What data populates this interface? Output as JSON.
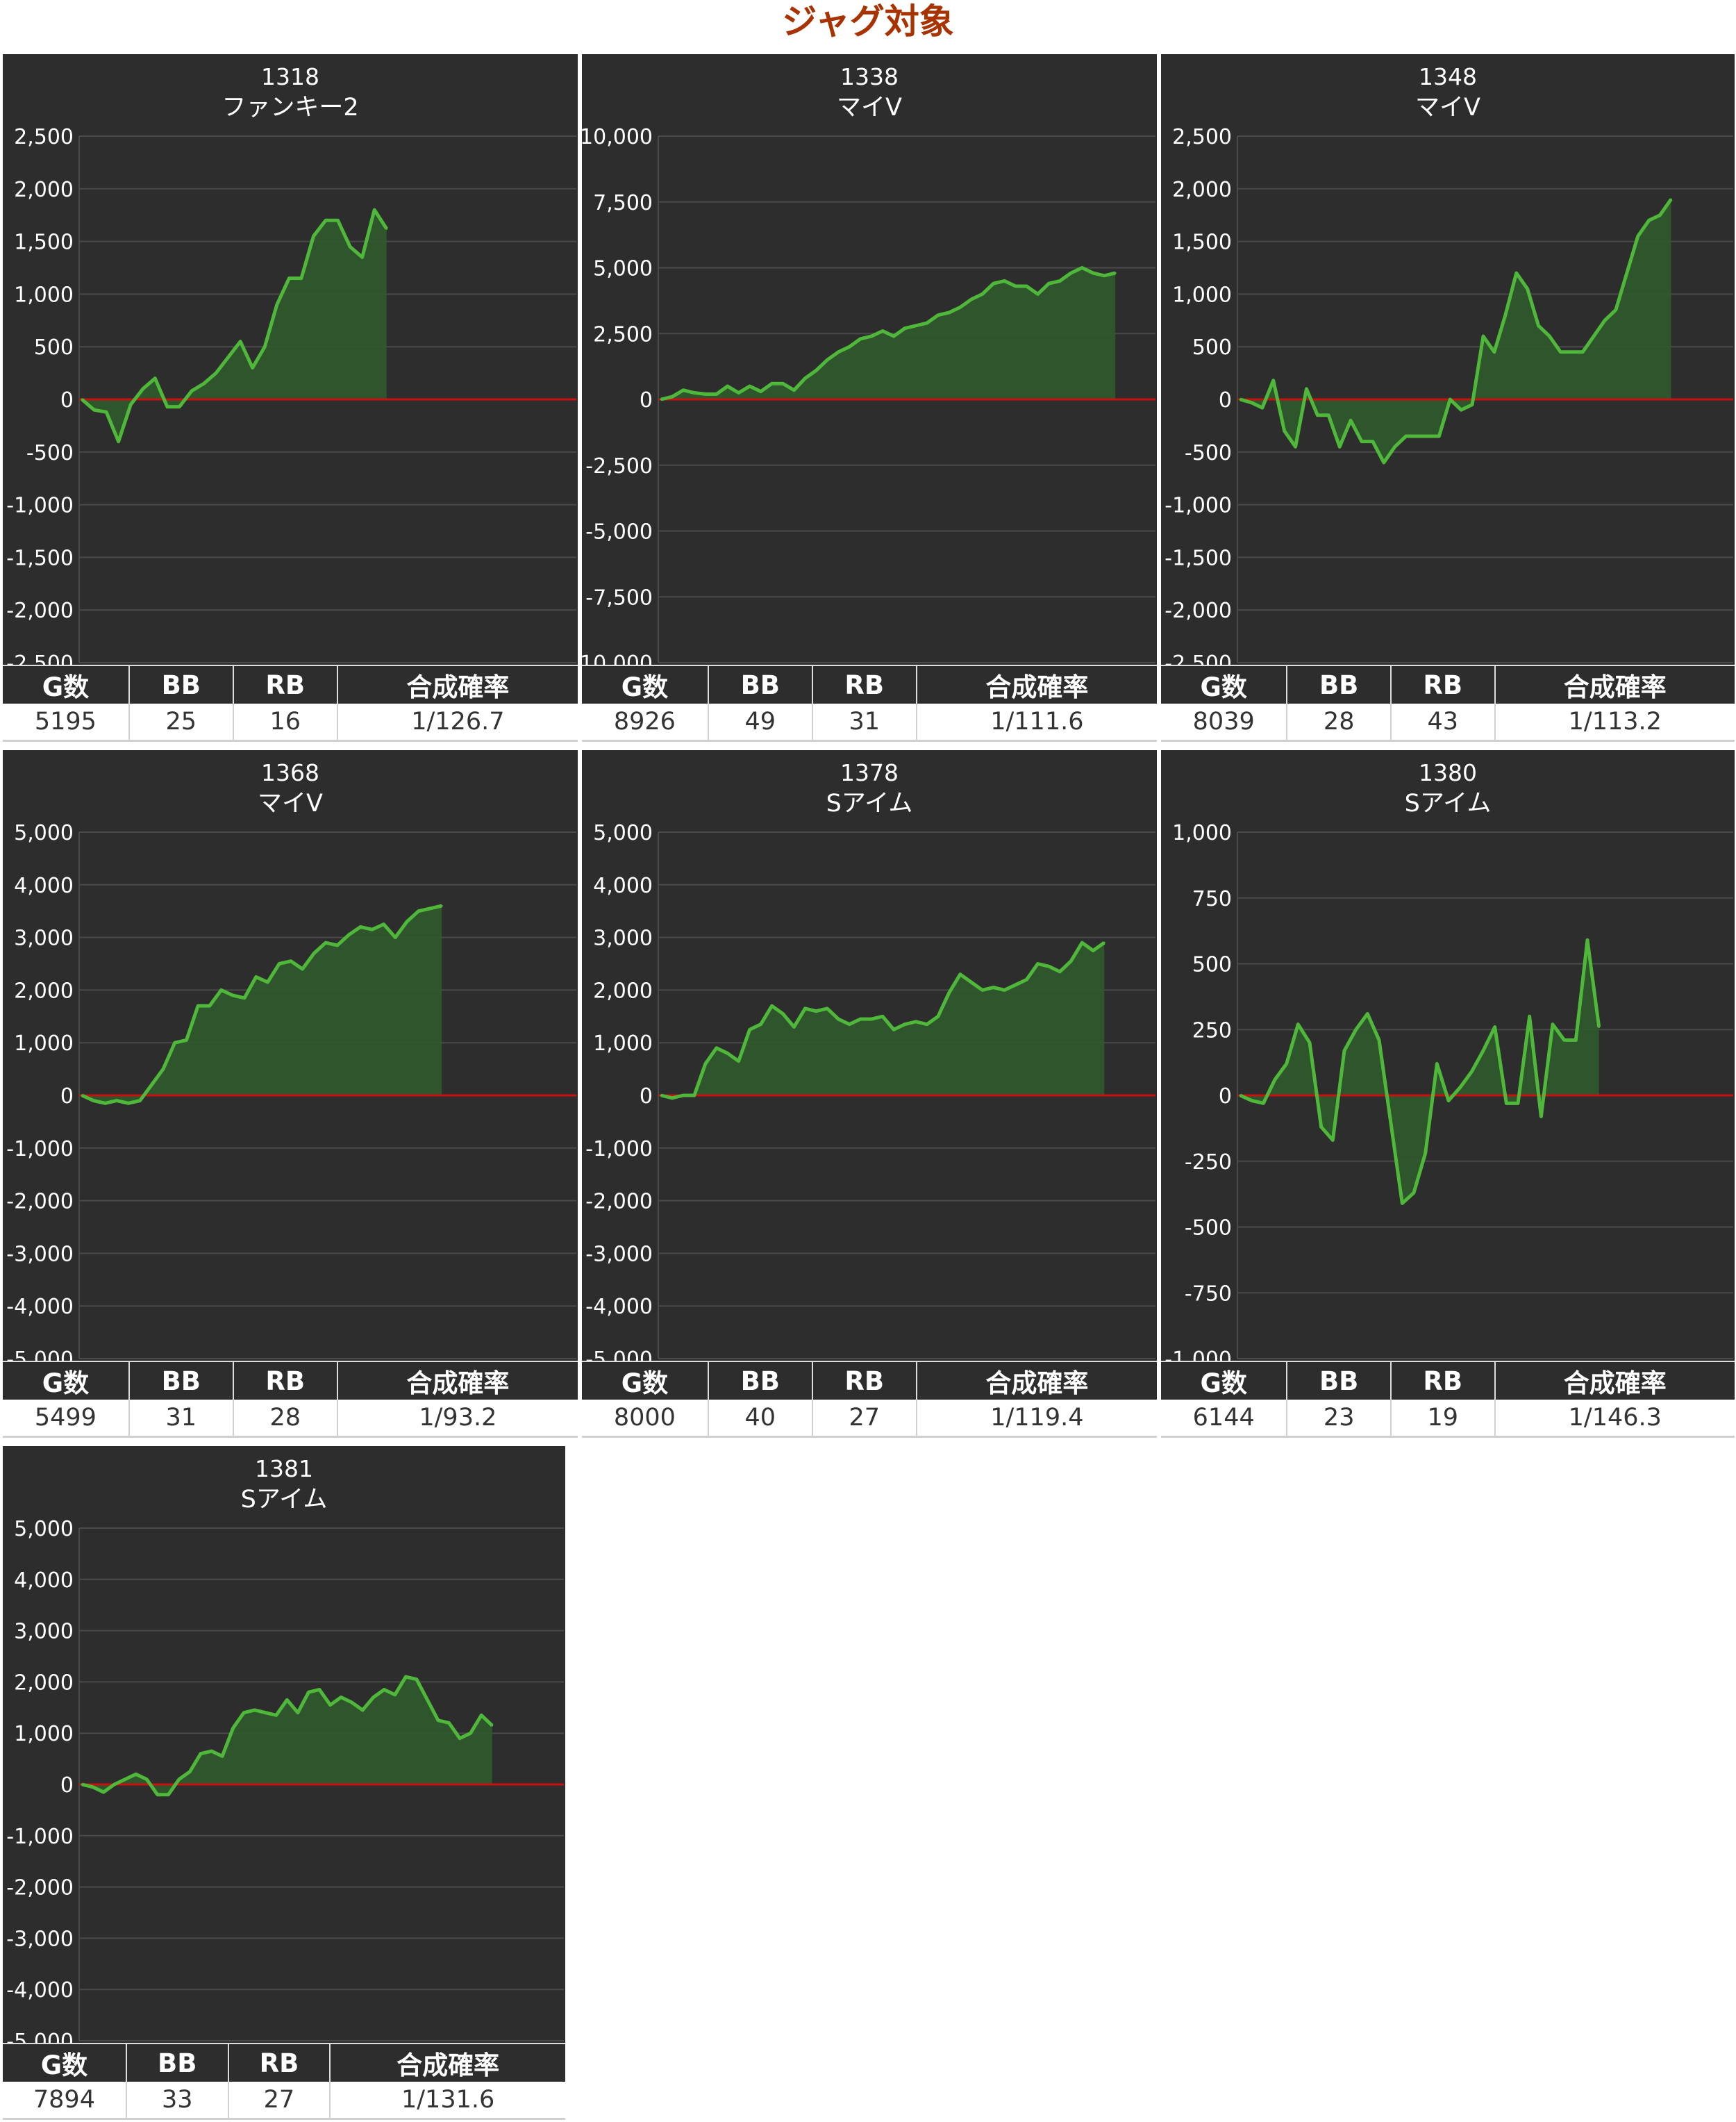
{
  "title": "ジャグ対象",
  "stat_headers": [
    "G数",
    "BB",
    "RB",
    "合成確率"
  ],
  "colors": {
    "title": "#a83200",
    "background": "#2d2d2d",
    "grid": "#4a4a4a",
    "zero_line": "#cc1010",
    "line": "#4fb83a",
    "fill": "#2f5a2c"
  },
  "chart_data": [
    {
      "type": "area",
      "machine": "1318",
      "name": "ファンキー2",
      "ylim": [
        -2500,
        2500
      ],
      "yticks": [
        "-2,500",
        "-2,000",
        "-1,500",
        "-1,000",
        "-500",
        "0",
        "500",
        "1,000",
        "1,500",
        "2,000",
        "2,500"
      ],
      "grid": true,
      "values": [
        0,
        -100,
        -120,
        -400,
        -50,
        100,
        200,
        -70,
        -70,
        80,
        150,
        250,
        400,
        550,
        300,
        500,
        900,
        1150,
        1150,
        1550,
        1700,
        1700,
        1450,
        1350,
        1800,
        1620
      ],
      "stats": {
        "games": "5195",
        "bb": "25",
        "rb": "16",
        "prob": "1/126.7"
      }
    },
    {
      "type": "area",
      "machine": "1338",
      "name": "マイV",
      "ylim": [
        -10000,
        10000
      ],
      "yticks": [
        "-10,000",
        "-7,500",
        "-5,000",
        "-2,500",
        "0",
        "2,500",
        "5,000",
        "7,500",
        "10,000"
      ],
      "grid": true,
      "values": [
        0,
        100,
        350,
        250,
        200,
        200,
        500,
        250,
        500,
        300,
        600,
        600,
        350,
        800,
        1100,
        1500,
        1800,
        2000,
        2300,
        2400,
        2600,
        2400,
        2700,
        2800,
        2900,
        3200,
        3300,
        3500,
        3800,
        4000,
        4400,
        4500,
        4300,
        4300,
        4000,
        4400,
        4500,
        4800,
        5000,
        4800,
        4700,
        4800
      ],
      "stats": {
        "games": "8926",
        "bb": "49",
        "rb": "31",
        "prob": "1/111.6"
      }
    },
    {
      "type": "area",
      "machine": "1348",
      "name": "マイV",
      "ylim": [
        -2500,
        2500
      ],
      "yticks": [
        "-2,500",
        "-2,000",
        "-1,500",
        "-1,000",
        "-500",
        "0",
        "500",
        "1,000",
        "1,500",
        "2,000",
        "2,500"
      ],
      "grid": true,
      "values": [
        0,
        -30,
        -80,
        180,
        -300,
        -450,
        100,
        -150,
        -150,
        -450,
        -200,
        -400,
        -400,
        -600,
        -450,
        -350,
        -350,
        -350,
        -350,
        0,
        -100,
        -50,
        600,
        450,
        800,
        1200,
        1050,
        700,
        600,
        450,
        450,
        450,
        600,
        750,
        850,
        1200,
        1550,
        1700,
        1750,
        1900
      ],
      "stats": {
        "games": "8039",
        "bb": "28",
        "rb": "43",
        "prob": "1/113.2"
      }
    },
    {
      "type": "area",
      "machine": "1368",
      "name": "マイV",
      "ylim": [
        -5000,
        5000
      ],
      "yticks": [
        "-5,000",
        "-4,000",
        "-3,000",
        "-2,000",
        "-1,000",
        "0",
        "1,000",
        "2,000",
        "3,000",
        "4,000",
        "5,000"
      ],
      "grid": true,
      "values": [
        0,
        -100,
        -150,
        -100,
        -150,
        -100,
        200,
        500,
        1000,
        1050,
        1700,
        1700,
        2000,
        1900,
        1850,
        2250,
        2150,
        2500,
        2550,
        2400,
        2700,
        2900,
        2850,
        3050,
        3200,
        3150,
        3250,
        3000,
        3300,
        3500,
        3550,
        3600
      ],
      "stats": {
        "games": "5499",
        "bb": "31",
        "rb": "28",
        "prob": "1/93.2"
      }
    },
    {
      "type": "area",
      "machine": "1378",
      "name": "Sアイム",
      "ylim": [
        -5000,
        5000
      ],
      "yticks": [
        "-5,000",
        "-4,000",
        "-3,000",
        "-2,000",
        "-1,000",
        "0",
        "1,000",
        "2,000",
        "3,000",
        "4,000",
        "5,000"
      ],
      "grid": true,
      "values": [
        0,
        -50,
        0,
        0,
        600,
        900,
        800,
        650,
        1250,
        1350,
        1700,
        1550,
        1300,
        1650,
        1600,
        1650,
        1450,
        1350,
        1450,
        1450,
        1500,
        1250,
        1350,
        1400,
        1350,
        1500,
        1950,
        2300,
        2150,
        2000,
        2050,
        2000,
        2100,
        2200,
        2500,
        2450,
        2350,
        2550,
        2900,
        2750,
        2900
      ],
      "stats": {
        "games": "8000",
        "bb": "40",
        "rb": "27",
        "prob": "1/119.4"
      }
    },
    {
      "type": "area",
      "machine": "1380",
      "name": "Sアイム",
      "ylim": [
        -1000,
        1000
      ],
      "yticks": [
        "-1,000",
        "-750",
        "-500",
        "-250",
        "0",
        "250",
        "500",
        "750",
        "1,000"
      ],
      "grid": true,
      "values": [
        0,
        -20,
        -30,
        60,
        120,
        270,
        200,
        -120,
        -170,
        170,
        250,
        310,
        210,
        -100,
        -410,
        -370,
        -220,
        120,
        -20,
        30,
        90,
        170,
        260,
        -30,
        -30,
        300,
        -80,
        270,
        210,
        210,
        590,
        260
      ],
      "stats": {
        "games": "6144",
        "bb": "23",
        "rb": "19",
        "prob": "1/146.3"
      }
    },
    {
      "type": "area",
      "machine": "1381",
      "name": "Sアイム",
      "ylim": [
        -5000,
        5000
      ],
      "yticks": [
        "-5,000",
        "-4,000",
        "-3,000",
        "-2,000",
        "-1,000",
        "0",
        "1,000",
        "2,000",
        "3,000",
        "4,000",
        "5,000"
      ],
      "grid": true,
      "values": [
        0,
        -50,
        -150,
        0,
        100,
        200,
        100,
        -200,
        -200,
        100,
        250,
        600,
        650,
        550,
        1100,
        1400,
        1450,
        1400,
        1350,
        1650,
        1400,
        1800,
        1850,
        1550,
        1700,
        1600,
        1450,
        1700,
        1850,
        1750,
        2100,
        2050,
        1650,
        1250,
        1200,
        900,
        1000,
        1350,
        1150
      ],
      "stats": {
        "games": "7894",
        "bb": "33",
        "rb": "27",
        "prob": "1/131.6"
      }
    }
  ]
}
